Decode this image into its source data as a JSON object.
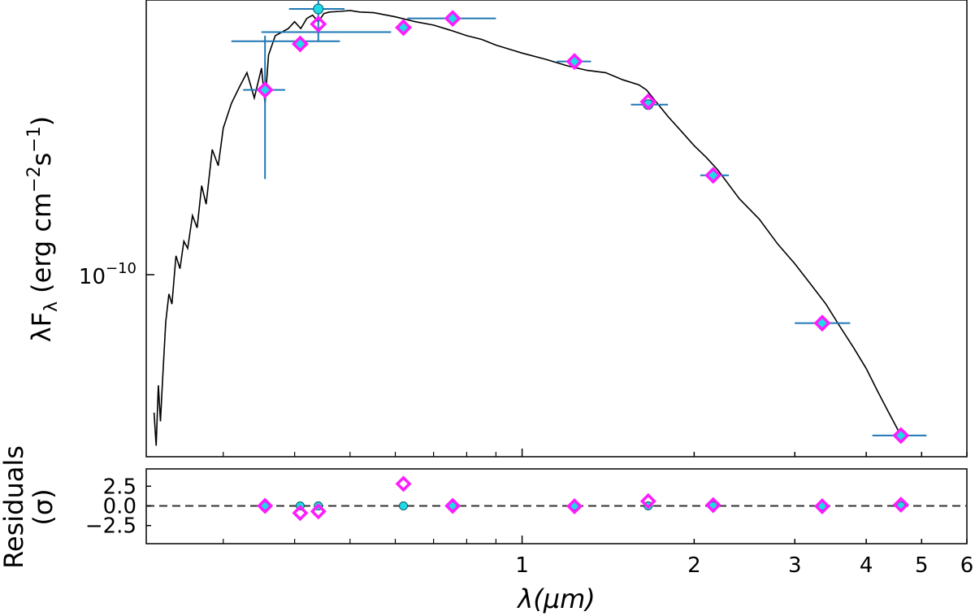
{
  "chart_data": [
    {
      "panel": "sed",
      "type": "line",
      "title": "",
      "xlabel": "",
      "ylabel_main": "λF",
      "ylabel_sub": "λ",
      "ylabel_units": "(erg cm",
      "ylabel_exp1": "−2",
      "ylabel_mid": "s",
      "ylabel_exp2": "−1",
      "ylabel_close": ")",
      "xscale": "log",
      "yscale": "log",
      "xlim": [
        0.22,
        6.0
      ],
      "ylim": [
        2.7e-11,
        5.3e-10
      ],
      "ytick_base": "10",
      "ytick_exp": "−10",
      "ytick_value": 1e-10,
      "colors": {
        "model": "#000000",
        "errorbar": "#1f77b4",
        "observed": "#1fd9e6",
        "synthetic": "#ff1aff"
      },
      "model_spectrum": {
        "x": [
          0.227,
          0.229,
          0.231,
          0.233,
          0.235,
          0.238,
          0.241,
          0.244,
          0.248,
          0.252,
          0.256,
          0.26,
          0.265,
          0.27,
          0.275,
          0.28,
          0.287,
          0.294,
          0.3,
          0.31,
          0.32,
          0.33,
          0.34,
          0.35,
          0.355,
          0.36,
          0.37,
          0.38,
          0.39,
          0.4,
          0.41,
          0.42,
          0.43,
          0.44,
          0.45,
          0.46,
          0.48,
          0.5,
          0.52,
          0.55,
          0.58,
          0.6,
          0.65,
          0.7,
          0.75,
          0.8,
          0.85,
          0.9,
          1.0,
          1.1,
          1.2,
          1.3,
          1.4,
          1.5,
          1.6,
          1.65,
          1.7,
          1.8,
          1.9,
          2.0,
          2.1,
          2.2,
          2.4,
          2.6,
          2.8,
          3.0,
          3.2,
          3.4,
          3.6,
          3.8,
          4.0,
          4.2,
          4.4,
          4.6
        ],
        "y": [
          3.6e-11,
          2.9e-11,
          4.3e-11,
          3.4e-11,
          4.5e-11,
          6.5e-11,
          7.8e-11,
          7.3e-11,
          1e-10,
          9.2e-11,
          1.1e-10,
          1.05e-10,
          1.3e-10,
          1.2e-10,
          1.58e-10,
          1.4e-10,
          2e-10,
          1.8e-10,
          2.3e-10,
          2.7e-10,
          3e-10,
          3.3e-10,
          2.8e-10,
          3.4e-10,
          2.7e-10,
          3.7e-10,
          4.2e-10,
          4.3e-10,
          4.4e-10,
          4.6e-10,
          4.4e-10,
          4.7e-10,
          4.8e-10,
          4.6e-10,
          4.85e-10,
          4.9e-10,
          4.92e-10,
          4.95e-10,
          4.9e-10,
          4.88e-10,
          4.8e-10,
          4.75e-10,
          4.6e-10,
          4.5e-10,
          4.35e-10,
          4.2e-10,
          4.1e-10,
          3.95e-10,
          3.75e-10,
          3.6e-10,
          3.45e-10,
          3.35e-10,
          3.3e-10,
          3.15e-10,
          3.05e-10,
          2.95e-10,
          2.78e-10,
          2.48e-10,
          2.25e-10,
          2.05e-10,
          1.9e-10,
          1.75e-10,
          1.45e-10,
          1.27e-10,
          1.08e-10,
          9.5e-11,
          8.3e-11,
          7.3e-11,
          6.3e-11,
          5.5e-11,
          4.8e-11,
          4.1e-11,
          3.55e-11,
          3.1e-11
        ]
      },
      "points": [
        {
          "x": 0.355,
          "y": 2.95e-10,
          "xerr": [
            0.325,
            0.385
          ],
          "yerr": [
            1.65e-10,
            4.2e-10
          ],
          "synthetic": 2.95e-10
        },
        {
          "x": 0.409,
          "y": 3.98e-10,
          "xerr": null,
          "yerr": null,
          "synthetic": 3.98e-10
        },
        {
          "x": 0.44,
          "y": 5e-10,
          "xerr": [
            0.391,
            0.489
          ],
          "yerr": [
            4.05e-10,
            5.35e-10
          ],
          "synthetic": 4.53e-10
        },
        {
          "x": 0.62,
          "y": 4.43e-10,
          "xerr": null,
          "yerr": null,
          "synthetic": 4.43e-10
        },
        {
          "x": 0.47,
          "y": 4.3e-10,
          "xerr": [
            0.35,
            0.59
          ],
          "yerr": null,
          "synthetic": null
        },
        {
          "x": 0.35,
          "y": 4.05e-10,
          "xerr": [
            0.31,
            0.48
          ],
          "yerr": null,
          "synthetic": null
        },
        {
          "x": 0.756,
          "y": 4.7e-10,
          "xerr": [
            0.63,
            0.9
          ],
          "yerr": null,
          "synthetic": 4.7e-10
        },
        {
          "x": 1.235,
          "y": 3.55e-10,
          "xerr": [
            1.15,
            1.32
          ],
          "yerr": null,
          "synthetic": 3.55e-10
        },
        {
          "x": 1.662,
          "y": 2.68e-10,
          "xerr": [
            1.55,
            1.8
          ],
          "yerr": null,
          "synthetic": 2.73e-10
        },
        {
          "x": 2.159,
          "y": 1.69e-10,
          "xerr": [
            2.05,
            2.3
          ],
          "yerr": null,
          "synthetic": 1.69e-10
        },
        {
          "x": 3.35,
          "y": 6.45e-11,
          "xerr": [
            3.0,
            3.75
          ],
          "yerr": null,
          "synthetic": 6.45e-11
        },
        {
          "x": 4.6,
          "y": 3.1e-11,
          "xerr": [
            4.1,
            5.1
          ],
          "yerr": null,
          "synthetic": 3.1e-11
        }
      ]
    },
    {
      "panel": "residuals",
      "type": "scatter",
      "ylabel_line1": "Residuals",
      "ylabel_line2": "(σ)",
      "xlabel": "λ(μm)",
      "xscale": "log",
      "xlim": [
        0.22,
        6.0
      ],
      "ylim": [
        -4.8,
        4.7
      ],
      "yticks": [
        2.5,
        0.0,
        -2.5
      ],
      "ytick_labels": [
        "2.5",
        "0.0",
        "−2.5"
      ],
      "xticks": [
        1,
        2,
        3,
        4,
        5,
        6
      ],
      "xtick_labels": [
        "1",
        "2",
        "3",
        "4",
        "5",
        "6"
      ],
      "zero_line": 0.0,
      "observed": [
        {
          "x": 0.355,
          "y": 0.0
        },
        {
          "x": 0.409,
          "y": 0.0
        },
        {
          "x": 0.44,
          "y": 0.0
        },
        {
          "x": 0.62,
          "y": 0.0
        },
        {
          "x": 0.756,
          "y": 0.0
        },
        {
          "x": 1.235,
          "y": 0.0
        },
        {
          "x": 1.662,
          "y": 0.0
        },
        {
          "x": 2.159,
          "y": 0.0
        },
        {
          "x": 3.35,
          "y": 0.0
        },
        {
          "x": 4.6,
          "y": 0.0
        }
      ],
      "synthetic": [
        {
          "x": 0.355,
          "y": 0.0
        },
        {
          "x": 0.409,
          "y": -0.9
        },
        {
          "x": 0.44,
          "y": -0.7
        },
        {
          "x": 0.62,
          "y": 2.8
        },
        {
          "x": 0.756,
          "y": 0.0
        },
        {
          "x": 1.235,
          "y": -0.05
        },
        {
          "x": 1.662,
          "y": 0.6
        },
        {
          "x": 2.159,
          "y": 0.1
        },
        {
          "x": 3.35,
          "y": -0.05
        },
        {
          "x": 4.6,
          "y": 0.15
        }
      ]
    }
  ]
}
